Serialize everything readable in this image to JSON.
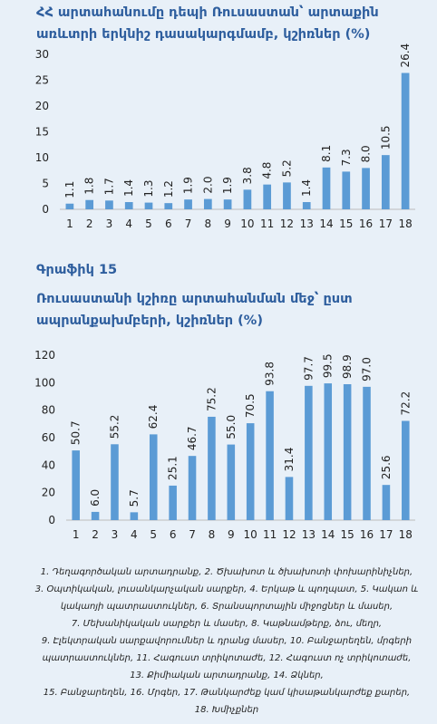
{
  "chart_data": [
    {
      "type": "bar",
      "title": "ՀՀ արտահանումը դեպի Ռուսաստան՝ արտաքին առևտրի երկնիշ դասակարգմամբ, կշիռներ (%)",
      "categories": [
        1,
        2,
        3,
        4,
        5,
        6,
        7,
        8,
        9,
        10,
        11,
        12,
        13,
        14,
        15,
        16,
        17,
        18
      ],
      "values": [
        1.1,
        1.8,
        1.7,
        1.4,
        1.3,
        1.2,
        1.9,
        2.0,
        1.9,
        3.8,
        4.8,
        5.2,
        1.4,
        8.1,
        7.3,
        8.0,
        10.5,
        26.4
      ],
      "value_labels": [
        "1.1",
        "1.8",
        "1.7",
        "1.4",
        "1.3",
        "1.2",
        "1.9",
        "2.0",
        "1.9",
        "3.8",
        "4.8",
        "5.2",
        "1.4",
        "8.1",
        "7.3",
        "8.0",
        "10.5",
        "26.4"
      ],
      "color": "#5b9bd5",
      "ylim": [
        0,
        30
      ],
      "yticks": [
        0,
        5,
        10,
        15,
        20,
        25,
        30
      ],
      "grid": false
    },
    {
      "type": "bar",
      "label": "Գրաֆիկ 15",
      "title": "Ռուսաստանի կշիռը արտահանման մեջ՝ ըստ ապրանքախմբերի, կշիռներ (%)",
      "categories": [
        1,
        2,
        3,
        4,
        5,
        6,
        7,
        8,
        9,
        10,
        11,
        12,
        13,
        14,
        15,
        16,
        17,
        18
      ],
      "values": [
        50.7,
        6.0,
        55.2,
        5.7,
        62.4,
        25.1,
        46.7,
        75.2,
        55.0,
        70.5,
        93.8,
        31.4,
        97.7,
        99.5,
        98.9,
        97.0,
        25.6,
        72.2
      ],
      "value_labels": [
        "50.7",
        "6.0",
        "55.2",
        "5.7",
        "62.4",
        "25.1",
        "46.7",
        "75.2",
        "55.0",
        "70.5",
        "93.8",
        "31.4",
        "97.7",
        "99.5",
        "98.9",
        "97.0",
        "25.6",
        "72.2"
      ],
      "color": "#5b9bd5",
      "ylim": [
        0,
        120
      ],
      "yticks": [
        0,
        20,
        40,
        60,
        80,
        100,
        120
      ],
      "grid": false
    }
  ],
  "footnote": [
    "1. Դեղագործական արտադրանք, 2. Ծխախոտ և ծխախոտի փոխարինիչներ,",
    "3. Օպտիկական, լուսանկարչական սարքեր, 4. Երկաթ և պողպատ, 5. Կակաո և",
    "կակաոյի պատրաստուկներ, 6. Տրանսպորտային միջոցներ և մասեր,",
    "7. Մեխանիկական սարքեր և մասեր, 8. Կաթնամթերք, ձու, մեղր,",
    "9. Էլեկտրական սարքավորումներ և դրանց մասեր, 10. Բանջարեղեն, մրգերի",
    "պատրաստուկներ, 11. Հագուստ տրիկոտաժե, 12. Հագուստ ոչ տրիկոտաժե,",
    "13. Քիմիական արտադրանք, 14. Ձկներ,",
    "15. Բանջարեղեն, 16. Մրգեր, 17. Թանկարժեք կամ կիսաթանկարժեք քարեր,",
    "18. Խմիչքներ"
  ]
}
